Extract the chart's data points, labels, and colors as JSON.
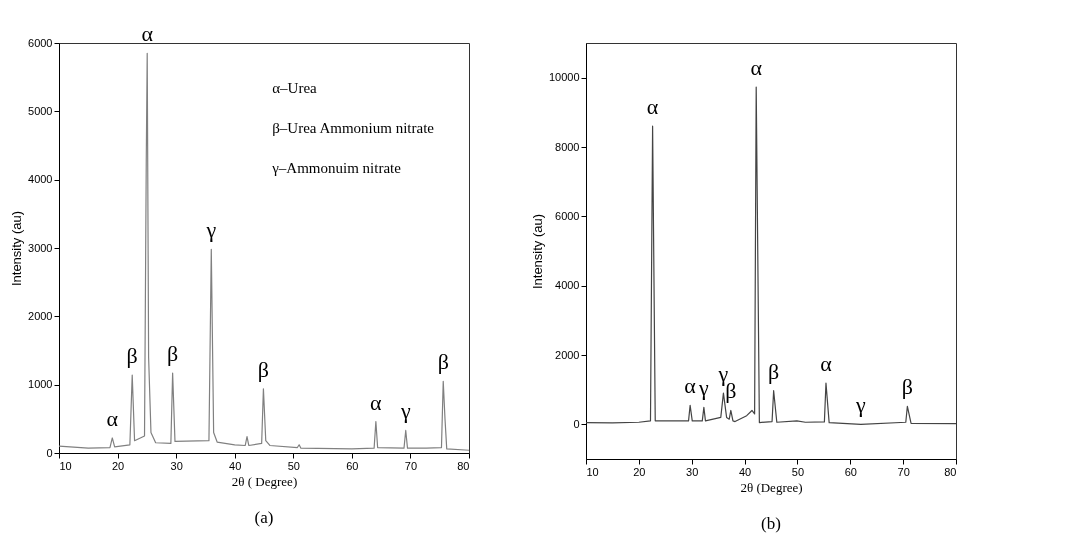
{
  "chart_data": [
    {
      "type": "line",
      "title": "(a)",
      "xlabel": "2θ ( Degree)",
      "ylabel": "Intensity (au)",
      "color": "#808080",
      "grid": false,
      "x": [
        10,
        15,
        18.7,
        19.1,
        19.5,
        22.1,
        22.5,
        22.9,
        24.6,
        24.9,
        25.06,
        25.3,
        25.7,
        26.5,
        29.1,
        29.4,
        29.8,
        35.6,
        36.0,
        36.4,
        37,
        40,
        41.8,
        42.1,
        42.4,
        44.6,
        44.9,
        45.3,
        46,
        50.7,
        51.0,
        51.3,
        60,
        63.8,
        64.1,
        64.4,
        68.9,
        69.2,
        69.5,
        72.7,
        75.3,
        75.6,
        75.9,
        76.2,
        80
      ],
      "values": [
        100,
        70,
        80,
        220,
        90,
        120,
        1140,
        180,
        250,
        4300,
        5850,
        1400,
        300,
        150,
        140,
        1170,
        170,
        180,
        2980,
        300,
        160,
        120,
        110,
        240,
        110,
        140,
        940,
        180,
        110,
        80,
        120,
        70,
        60,
        70,
        460,
        80,
        70,
        330,
        70,
        70,
        80,
        1050,
        500,
        60,
        40
      ],
      "xlim": [
        10,
        80
      ],
      "xticks": [
        10,
        20,
        30,
        40,
        50,
        60,
        70,
        80
      ],
      "ylim": [
        0,
        6000
      ],
      "yticks": [
        0,
        1000,
        2000,
        3000,
        4000,
        5000,
        6000
      ],
      "annotations": [
        "α–Urea",
        "β–Urea Ammonium nitrate",
        "γ–Ammonuim nitrate",
        {
          "text": "α",
          "x": 19.1,
          "y": 220
        },
        {
          "text": "β",
          "x": 22.5,
          "y": 1140
        },
        {
          "text": "α",
          "x": 25.06,
          "y": 5850
        },
        {
          "text": "β",
          "x": 29.4,
          "y": 1170
        },
        {
          "text": "γ",
          "x": 36.0,
          "y": 2980
        },
        {
          "text": "β",
          "x": 44.9,
          "y": 940
        },
        {
          "text": "α",
          "x": 64.1,
          "y": 460
        },
        {
          "text": "γ",
          "x": 69.2,
          "y": 330
        },
        {
          "text": "β",
          "x": 75.6,
          "y": 1050
        }
      ]
    },
    {
      "type": "line",
      "title": "(b)",
      "xlabel": "2θ (Degree)",
      "ylabel": "Intensity (au)",
      "color": "#444444",
      "grid": false,
      "x": [
        10,
        15,
        20,
        22.2,
        22.6,
        23.1,
        28,
        29.4,
        29.7,
        30.1,
        32.0,
        32.3,
        32.6,
        35.5,
        36.0,
        36.6,
        37.1,
        37.4,
        37.8,
        38.2,
        40.4,
        41.4,
        41.9,
        42.2,
        42.8,
        45.2,
        45.5,
        46.1,
        49.9,
        51.5,
        55.1,
        55.4,
        56.0,
        62,
        70.5,
        70.8,
        71.5,
        80
      ],
      "values": [
        50,
        40,
        60,
        100,
        8600,
        100,
        100,
        100,
        550,
        100,
        100,
        490,
        100,
        200,
        900,
        200,
        150,
        400,
        100,
        80,
        250,
        400,
        300,
        9730,
        50,
        80,
        970,
        60,
        100,
        60,
        70,
        1190,
        50,
        0,
        60,
        520,
        30,
        20
      ],
      "xlim": [
        10,
        80
      ],
      "xticks": [
        10,
        20,
        30,
        40,
        50,
        60,
        70,
        80
      ],
      "ylim": [
        -1000,
        11000
      ],
      "yticks": [
        0,
        2000,
        4000,
        6000,
        8000,
        10000
      ],
      "annotations": [
        {
          "text": "α",
          "x": 22.6,
          "y": 8600
        },
        {
          "text": "α",
          "x": 29.7,
          "y": 550
        },
        {
          "text": "γ",
          "x": 32.3,
          "y": 490
        },
        {
          "text": "γ",
          "x": 36.0,
          "y": 900
        },
        {
          "text": "β",
          "x": 37.4,
          "y": 400
        },
        {
          "text": "α",
          "x": 42.2,
          "y": 9730
        },
        {
          "text": "β",
          "x": 45.5,
          "y": 970
        },
        {
          "text": "α",
          "x": 55.4,
          "y": 1190
        },
        {
          "text": "γ",
          "x": 62,
          "y": 0
        },
        {
          "text": "β",
          "x": 70.8,
          "y": 520
        }
      ]
    }
  ]
}
